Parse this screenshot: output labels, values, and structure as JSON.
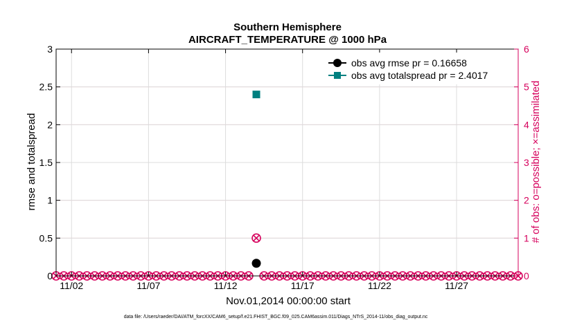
{
  "chart_data": {
    "type": "scatter",
    "title": "Southern Hemisphere",
    "subtitle": "AIRCRAFT_TEMPERATURE @ 1000 hPa",
    "xlabel": "Nov.01,2014 00:00:00 start",
    "ylabel": "rmse and totalspread",
    "y2label": "# of obs: o=possible; ×=assimilated",
    "footnote": "data file: /Users/raeder/DAI/ATM_forcXX/CAM6_setup/f.e21.FHIST_BGC.f09_025.CAM6assim.011/Diags_NTrS_2014-11/obs_diag_output.nc",
    "xlim": [
      0.5,
      30.5
    ],
    "ylim": [
      0,
      3
    ],
    "y2lim": [
      0,
      6
    ],
    "x_ticks": [
      1.5,
      6.5,
      11.5,
      16.5,
      21.5,
      26.5
    ],
    "x_tick_labels": [
      "11/02",
      "11/07",
      "11/12",
      "11/17",
      "11/22",
      "11/27"
    ],
    "y_ticks": [
      0,
      0.5,
      1,
      1.5,
      2,
      2.5,
      3
    ],
    "y_tick_labels": [
      "0",
      "0.5",
      "1",
      "1.5",
      "2",
      "2.5",
      "3"
    ],
    "y2_ticks": [
      0,
      1,
      2,
      3,
      4,
      5,
      6
    ],
    "y2_tick_labels": [
      "0",
      "1",
      "2",
      "3",
      "4",
      "5",
      "6"
    ],
    "grid": true,
    "legend_position": "top-right",
    "colors": {
      "rmse": "#000000",
      "spread": "#008080",
      "obs": "#d6005c",
      "grid": "#dcdcdc",
      "axis": "#000000"
    },
    "series": [
      {
        "name": "obs avg rmse pr = 0.16658",
        "axis": "left",
        "marker": "circle",
        "points": [
          [
            13.5,
            0.167
          ]
        ]
      },
      {
        "name": "obs avg totalspread pr = 2.4017",
        "axis": "left",
        "marker": "square",
        "points": [
          [
            13.5,
            2.4
          ]
        ]
      }
    ],
    "obs_counts": {
      "axis": "right",
      "marker": "circle-x",
      "x": [
        0.5,
        1,
        1.5,
        2,
        2.5,
        3,
        3.5,
        4,
        4.5,
        5,
        5.5,
        6,
        6.5,
        7,
        7.5,
        8,
        8.5,
        9,
        9.5,
        10,
        10.5,
        11,
        11.5,
        12,
        12.5,
        13,
        13.5,
        14,
        14.5,
        15,
        15.5,
        16,
        16.5,
        17,
        17.5,
        18,
        18.5,
        19,
        19.5,
        20,
        20.5,
        21,
        21.5,
        22,
        22.5,
        23,
        23.5,
        24,
        24.5,
        25,
        25.5,
        26,
        26.5,
        27,
        27.5,
        28,
        28.5,
        29,
        29.5,
        30,
        30.5
      ],
      "possible": [
        0,
        0,
        0,
        0,
        0,
        0,
        0,
        0,
        0,
        0,
        0,
        0,
        0,
        0,
        0,
        0,
        0,
        0,
        0,
        0,
        0,
        0,
        0,
        0,
        0,
        0,
        1,
        0,
        0,
        0,
        0,
        0,
        0,
        0,
        0,
        0,
        0,
        0,
        0,
        0,
        0,
        0,
        0,
        0,
        0,
        0,
        0,
        0,
        0,
        0,
        0,
        0,
        0,
        0,
        0,
        0,
        0,
        0,
        0,
        0,
        0
      ],
      "assimilated": [
        0,
        0,
        0,
        0,
        0,
        0,
        0,
        0,
        0,
        0,
        0,
        0,
        0,
        0,
        0,
        0,
        0,
        0,
        0,
        0,
        0,
        0,
        0,
        0,
        0,
        0,
        1,
        0,
        0,
        0,
        0,
        0,
        0,
        0,
        0,
        0,
        0,
        0,
        0,
        0,
        0,
        0,
        0,
        0,
        0,
        0,
        0,
        0,
        0,
        0,
        0,
        0,
        0,
        0,
        0,
        0,
        0,
        0,
        0,
        0,
        0
      ]
    }
  }
}
